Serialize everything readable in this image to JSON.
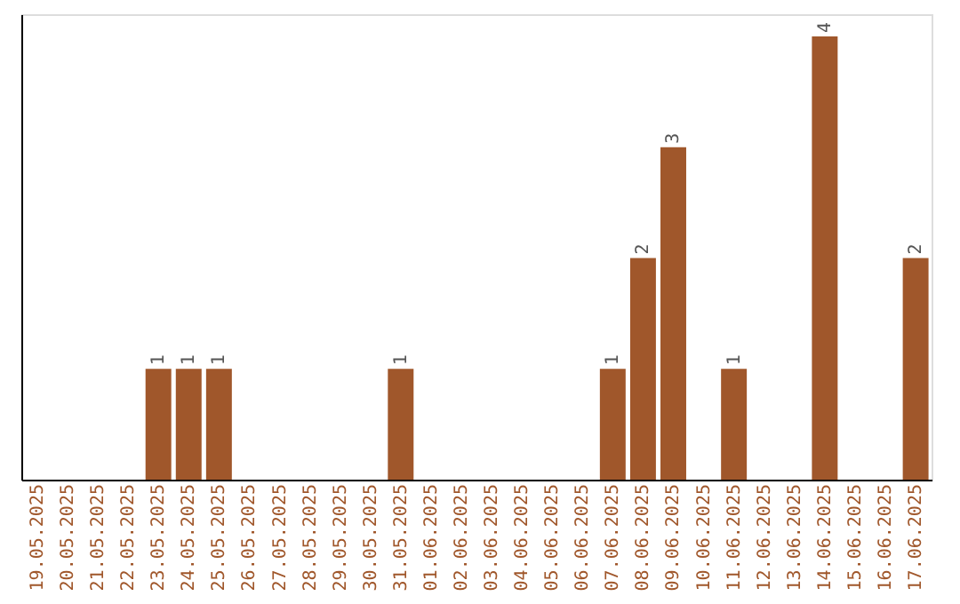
{
  "chart_data": {
    "type": "bar",
    "categories": [
      "19.05.2025",
      "20.05.2025",
      "21.05.2025",
      "22.05.2025",
      "23.05.2025",
      "24.05.2025",
      "25.05.2025",
      "26.05.2025",
      "27.05.2025",
      "28.05.2025",
      "29.05.2025",
      "30.05.2025",
      "31.05.2025",
      "01.06.2025",
      "02.06.2025",
      "03.06.2025",
      "04.06.2025",
      "05.06.2025",
      "06.06.2025",
      "07.06.2025",
      "08.06.2025",
      "09.06.2025",
      "10.06.2025",
      "11.06.2025",
      "12.06.2025",
      "13.06.2025",
      "14.06.2025",
      "15.06.2025",
      "16.06.2025",
      "17.06.2025"
    ],
    "values": [
      0,
      0,
      0,
      0,
      1,
      1,
      1,
      0,
      0,
      0,
      0,
      0,
      1,
      0,
      0,
      0,
      0,
      0,
      0,
      1,
      2,
      3,
      0,
      1,
      0,
      0,
      4,
      0,
      0,
      2
    ],
    "value_labels": [
      null,
      null,
      null,
      null,
      "1",
      "1",
      "1",
      null,
      null,
      null,
      null,
      null,
      "1",
      null,
      null,
      null,
      null,
      null,
      null,
      "1",
      "2",
      "3",
      null,
      "1",
      null,
      null,
      "4",
      null,
      null,
      "2"
    ],
    "color": "#a0572b",
    "ylim": [
      0,
      4.2
    ],
    "tick_labels": "x"
  }
}
